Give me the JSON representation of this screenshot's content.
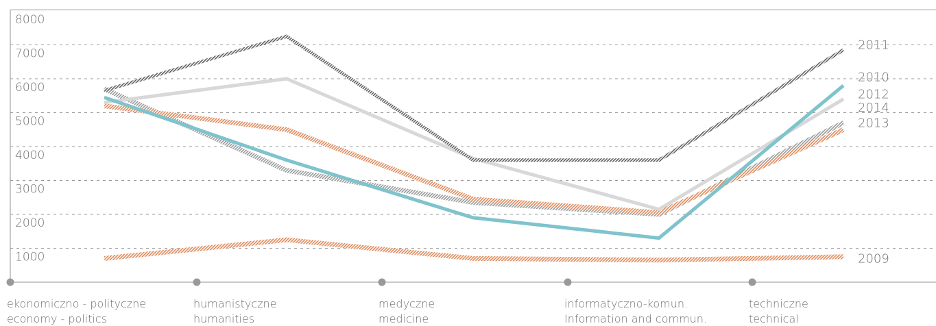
{
  "chart_data": {
    "type": "line",
    "title": "",
    "xlabel": "",
    "ylabel": "",
    "ylim": [
      0,
      8000
    ],
    "y_ticks": [
      1000,
      2000,
      3000,
      4000,
      5000,
      6000,
      7000,
      8000
    ],
    "grid": true,
    "legend": "labels at right end of each line",
    "categories": [
      {
        "line1": "ekonomiczno - polityczne",
        "line2": "economy - politics"
      },
      {
        "line1": "humanistyczne",
        "line2": "humanities"
      },
      {
        "line1": "medyczne",
        "line2": "medicine"
      },
      {
        "line1": "informatyczno-komun.",
        "line2": "Information and commun."
      },
      {
        "line1": "techniczne",
        "line2": "technical"
      }
    ],
    "series": [
      {
        "name": "2009",
        "values": [
          700,
          1250,
          700,
          650,
          750
        ],
        "color": "#e08a5a",
        "style": "hatched",
        "label_value": 700
      },
      {
        "name": "2014",
        "values": [
          5700,
          3300,
          2350,
          2000,
          4700
        ],
        "color": "#9a9a9a",
        "style": "hatched",
        "label_value": 5150
      },
      {
        "name": "2013",
        "values": [
          5200,
          4500,
          2450,
          2050,
          4500
        ],
        "color": "#e08a5a",
        "style": "hatched",
        "label_value": 4700
      },
      {
        "name": "2010",
        "values": [
          5300,
          6000,
          3650,
          2150,
          5400
        ],
        "color": "#d8d8d8",
        "style": "solid",
        "label_value": 6050
      },
      {
        "name": "2012",
        "values": [
          5450,
          3600,
          1900,
          1300,
          5800
        ],
        "color": "#7fc3cc",
        "style": "solid",
        "label_value": 5550
      },
      {
        "name": "2011",
        "values": [
          5650,
          7250,
          3600,
          3600,
          6850
        ],
        "color": "#666666",
        "style": "hatched",
        "label_value": 7000
      }
    ]
  },
  "colors": {
    "axis": "#909090",
    "grid": "#9a9a9a",
    "text": "#707070",
    "marker": "#999999"
  }
}
